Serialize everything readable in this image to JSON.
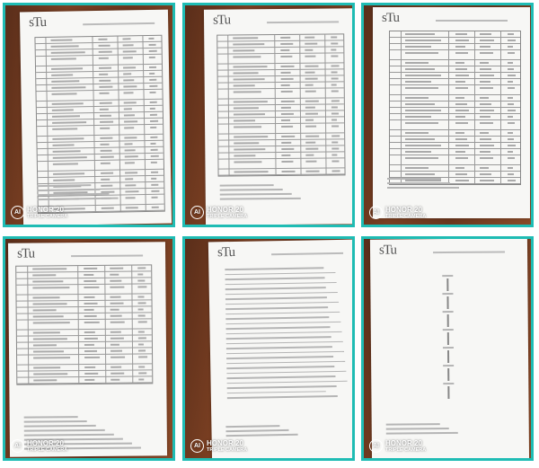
{
  "panels": [
    {
      "logo": "sTu",
      "watermark": {
        "brand": "HONOR 20",
        "sub": "TRIPLE CAMERA"
      }
    },
    {
      "logo": "sTu",
      "watermark": {
        "brand": "HONOR 20",
        "sub": "TRIPLE CAMERA"
      }
    },
    {
      "logo": "sTu",
      "watermark": {
        "brand": "HONOR 20",
        "sub": "TRIPLE CAMERA"
      }
    },
    {
      "logo": "sTu",
      "watermark": {
        "brand": "HONOR 20",
        "sub": "TRIPLE CAMERA"
      }
    },
    {
      "logo": "sTu",
      "watermark": {
        "brand": "HONOR 20",
        "sub": "TRIPLE CAMERA"
      }
    },
    {
      "logo": "sTu",
      "watermark": {
        "brand": "HONOR 20",
        "sub": "TRIPLE CAMERA"
      }
    }
  ],
  "colors": {
    "border": "#1fbcb4",
    "background": "#6a361d",
    "paper": "#f7f7f5"
  }
}
